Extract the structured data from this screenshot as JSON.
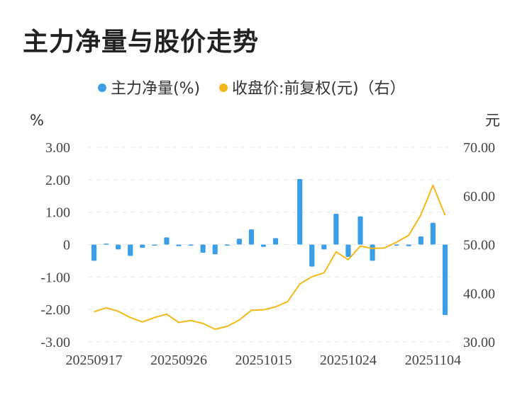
{
  "title": "主力净量与股价走势",
  "chart_data": {
    "type": "bar+line",
    "legend": [
      {
        "name": "主力净量(%)",
        "color": "#3a9ee8",
        "kind": "bar"
      },
      {
        "name": "收盘价:前复权(元)（右）",
        "color": "#f5b81a",
        "kind": "line"
      }
    ],
    "legend_position": "top",
    "y_left": {
      "unit": "%",
      "ticks": [
        "3.00",
        "2.00",
        "1.00",
        "0",
        "-1.00",
        "-2.00",
        "-3.00"
      ],
      "range": [
        -3,
        3
      ]
    },
    "y_right": {
      "unit": "元",
      "ticks": [
        "70.00",
        "60.00",
        "50.00",
        "40.00",
        "30.00"
      ],
      "range": [
        30,
        70
      ]
    },
    "x_tick_labels": [
      {
        "label": "20250917",
        "index": 0
      },
      {
        "label": "20250926",
        "index": 7
      },
      {
        "label": "20251015",
        "index": 14
      },
      {
        "label": "20251024",
        "index": 21
      },
      {
        "label": "20251104",
        "index": 28
      }
    ],
    "grid": true,
    "bar_series": {
      "name": "主力净量(%)",
      "values": [
        -0.5,
        0.03,
        -0.15,
        -0.35,
        -0.1,
        -0.03,
        0.22,
        -0.05,
        -0.02,
        -0.25,
        -0.3,
        -0.02,
        0.18,
        0.47,
        -0.07,
        0.2,
        0.0,
        2.02,
        -0.68,
        -0.15,
        0.95,
        -0.38,
        0.87,
        -0.5,
        0.0,
        -0.02,
        -0.05,
        0.25,
        0.67,
        -2.17
      ]
    },
    "line_series": {
      "name": "收盘价:前复权(元)（右）",
      "values": [
        36.2,
        37.0,
        36.3,
        35.0,
        34.1,
        35.0,
        35.7,
        34.0,
        34.4,
        33.8,
        32.6,
        33.2,
        34.5,
        36.5,
        36.6,
        37.2,
        38.3,
        41.9,
        43.4,
        44.2,
        48.5,
        46.9,
        49.7,
        49.2,
        49.3,
        50.5,
        51.9,
        56.1,
        62.2,
        56.0
      ]
    }
  }
}
